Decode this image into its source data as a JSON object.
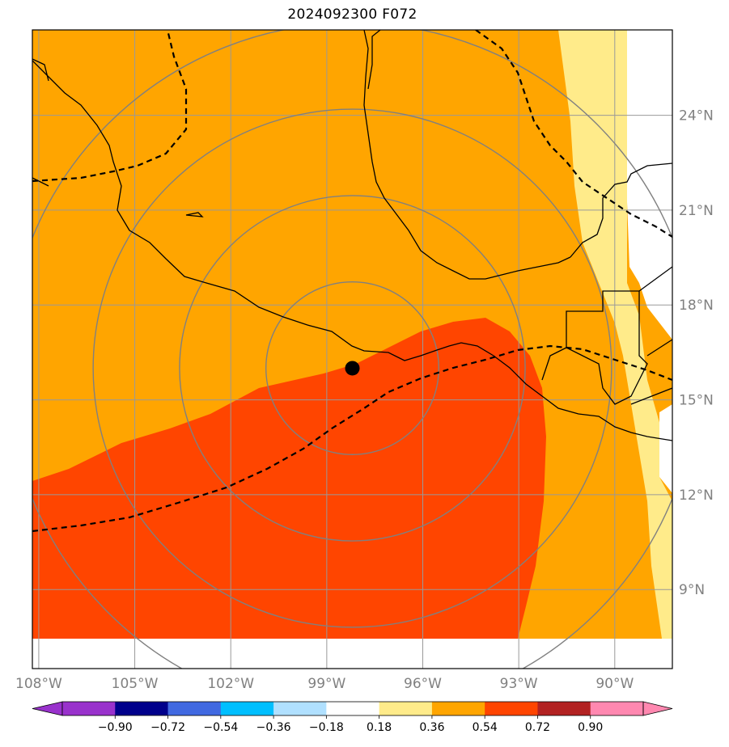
{
  "title": "2024092300 F072",
  "map": {
    "lon_range": [
      -108.2,
      -88.2
    ],
    "lat_range": [
      6.5,
      26.7
    ],
    "lon_ticks": [
      {
        "value": -108,
        "label": "108°W"
      },
      {
        "value": -105,
        "label": "105°W"
      },
      {
        "value": -102,
        "label": "102°W"
      },
      {
        "value": -99,
        "label": "99°W"
      },
      {
        "value": -96,
        "label": "96°W"
      },
      {
        "value": -93,
        "label": "93°W"
      },
      {
        "value": -90,
        "label": "90°W"
      }
    ],
    "lat_ticks": [
      {
        "value": 24,
        "label": "24°N"
      },
      {
        "value": 21,
        "label": "21°N"
      },
      {
        "value": 18,
        "label": "18°N"
      },
      {
        "value": 15,
        "label": "15°N"
      },
      {
        "value": 12,
        "label": "12°N"
      },
      {
        "value": 9,
        "label": "9°N"
      }
    ],
    "storm_center": {
      "lon": -98.2,
      "lat": 16.0
    },
    "range_rings_deg": [
      2.7,
      5.4,
      8.1,
      10.8
    ],
    "grid": true,
    "colors": {
      "band_0_18_to_0_36": "#ffeb8a",
      "band_0_36_to_0_54": "#ffa500",
      "band_0_54_to_0_72": "#ff4500",
      "grid": "#999999",
      "rings": "#808080",
      "coastline": "#000000"
    }
  },
  "colorbar": {
    "tick_labels": [
      "−0.90",
      "−0.72",
      "−0.54",
      "−0.36",
      "−0.18",
      "0.18",
      "0.36",
      "0.54",
      "0.72",
      "0.90"
    ],
    "colors": [
      "#9932cc",
      "#00008b",
      "#4169e1",
      "#00bfff",
      "#b0e0ff",
      "#ffffff",
      "#ffeb8a",
      "#ffa500",
      "#ff4500",
      "#b22222",
      "#ff88b0",
      "#ff88b0"
    ],
    "extend": "both"
  }
}
